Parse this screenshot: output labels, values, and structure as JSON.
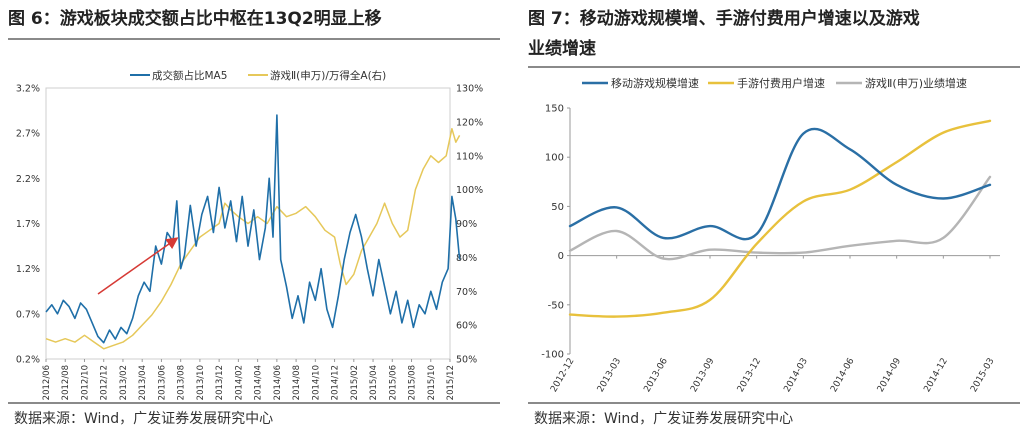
{
  "figure6": {
    "title": "图 6：游戏板块成交额占比中枢在13Q2明显上移",
    "source": "数据来源：Wind，广发证券发展研究中心",
    "chart_data": {
      "type": "line",
      "legend_position": "top",
      "x_ticks": [
        "2012/06",
        "2012/08",
        "2012/10",
        "2012/12",
        "2013/02",
        "2013/04",
        "2013/06",
        "2013/08",
        "2013/10",
        "2013/12",
        "2014/02",
        "2014/04",
        "2014/06",
        "2014/08",
        "2014/10",
        "2014/12",
        "2015/02",
        "2015/04",
        "2015/06",
        "2015/08",
        "2015/10",
        "2015/12"
      ],
      "y_left": {
        "ticks": [
          "0.2%",
          "0.7%",
          "1.2%",
          "1.7%",
          "2.2%",
          "2.7%",
          "3.2%"
        ],
        "min": 0.2,
        "max": 3.2
      },
      "y_right": {
        "ticks": [
          "50%",
          "60%",
          "70%",
          "80%",
          "90%",
          "100%",
          "110%",
          "120%",
          "130%"
        ],
        "min": 50,
        "max": 130
      },
      "series": [
        {
          "name": "成交额占比MA5",
          "axis": "left",
          "color": "#1f6fa8",
          "points": [
            [
              0,
              0.72
            ],
            [
              0.3,
              0.8
            ],
            [
              0.6,
              0.7
            ],
            [
              0.9,
              0.85
            ],
            [
              1.2,
              0.78
            ],
            [
              1.5,
              0.65
            ],
            [
              1.8,
              0.82
            ],
            [
              2.1,
              0.75
            ],
            [
              2.4,
              0.6
            ],
            [
              2.7,
              0.45
            ],
            [
              3.0,
              0.38
            ],
            [
              3.3,
              0.52
            ],
            [
              3.6,
              0.42
            ],
            [
              3.9,
              0.55
            ],
            [
              4.2,
              0.48
            ],
            [
              4.5,
              0.65
            ],
            [
              4.8,
              0.9
            ],
            [
              5.1,
              1.05
            ],
            [
              5.4,
              0.95
            ],
            [
              5.7,
              1.45
            ],
            [
              6.0,
              1.25
            ],
            [
              6.3,
              1.6
            ],
            [
              6.6,
              1.5
            ],
            [
              6.8,
              1.95
            ],
            [
              7.0,
              1.2
            ],
            [
              7.2,
              1.35
            ],
            [
              7.5,
              1.9
            ],
            [
              7.8,
              1.45
            ],
            [
              8.1,
              1.8
            ],
            [
              8.4,
              2.0
            ],
            [
              8.7,
              1.6
            ],
            [
              9.0,
              2.1
            ],
            [
              9.3,
              1.65
            ],
            [
              9.6,
              1.95
            ],
            [
              9.9,
              1.5
            ],
            [
              10.2,
              2.0
            ],
            [
              10.5,
              1.45
            ],
            [
              10.8,
              1.85
            ],
            [
              11.1,
              1.3
            ],
            [
              11.4,
              1.65
            ],
            [
              11.6,
              2.2
            ],
            [
              11.8,
              1.55
            ],
            [
              12.0,
              2.9
            ],
            [
              12.2,
              1.3
            ],
            [
              12.5,
              1.0
            ],
            [
              12.8,
              0.65
            ],
            [
              13.1,
              0.9
            ],
            [
              13.4,
              0.6
            ],
            [
              13.7,
              1.05
            ],
            [
              14.0,
              0.85
            ],
            [
              14.3,
              1.2
            ],
            [
              14.6,
              0.75
            ],
            [
              14.9,
              0.55
            ],
            [
              15.2,
              0.9
            ],
            [
              15.5,
              1.3
            ],
            [
              15.8,
              1.6
            ],
            [
              16.1,
              1.8
            ],
            [
              16.4,
              1.55
            ],
            [
              16.7,
              1.2
            ],
            [
              17.0,
              0.9
            ],
            [
              17.3,
              1.3
            ],
            [
              17.6,
              1.0
            ],
            [
              17.9,
              0.7
            ],
            [
              18.2,
              0.95
            ],
            [
              18.5,
              0.6
            ],
            [
              18.8,
              0.85
            ],
            [
              19.1,
              0.55
            ],
            [
              19.4,
              0.8
            ],
            [
              19.7,
              0.7
            ],
            [
              20.0,
              0.95
            ],
            [
              20.3,
              0.75
            ],
            [
              20.6,
              1.05
            ],
            [
              20.9,
              1.2
            ],
            [
              21.1,
              2.0
            ],
            [
              21.3,
              1.75
            ],
            [
              21.5,
              1.3
            ]
          ]
        },
        {
          "name": "游戏Ⅱ(申万)/万得全A(右)",
          "axis": "right",
          "color": "#e6c85a",
          "points": [
            [
              0,
              56
            ],
            [
              0.5,
              55
            ],
            [
              1.0,
              56
            ],
            [
              1.5,
              55
            ],
            [
              2.0,
              57
            ],
            [
              2.5,
              55
            ],
            [
              3.0,
              53
            ],
            [
              3.5,
              54
            ],
            [
              4.0,
              55
            ],
            [
              4.5,
              57
            ],
            [
              5.0,
              60
            ],
            [
              5.5,
              63
            ],
            [
              6.0,
              67
            ],
            [
              6.5,
              72
            ],
            [
              7.0,
              78
            ],
            [
              7.5,
              82
            ],
            [
              8.0,
              86
            ],
            [
              8.5,
              88
            ],
            [
              9.0,
              90
            ],
            [
              9.3,
              96
            ],
            [
              9.6,
              94
            ],
            [
              10.0,
              92
            ],
            [
              10.5,
              90
            ],
            [
              11.0,
              92
            ],
            [
              11.5,
              90
            ],
            [
              12.0,
              95
            ],
            [
              12.5,
              92
            ],
            [
              13.0,
              93
            ],
            [
              13.5,
              95
            ],
            [
              14.0,
              92
            ],
            [
              14.5,
              88
            ],
            [
              15.0,
              86
            ],
            [
              15.3,
              78
            ],
            [
              15.6,
              72
            ],
            [
              16.0,
              75
            ],
            [
              16.4,
              82
            ],
            [
              16.8,
              86
            ],
            [
              17.2,
              90
            ],
            [
              17.6,
              96
            ],
            [
              18.0,
              90
            ],
            [
              18.4,
              86
            ],
            [
              18.8,
              88
            ],
            [
              19.2,
              100
            ],
            [
              19.6,
              106
            ],
            [
              20.0,
              110
            ],
            [
              20.4,
              108
            ],
            [
              20.8,
              110
            ],
            [
              21.1,
              118
            ],
            [
              21.3,
              114
            ],
            [
              21.5,
              116
            ]
          ]
        }
      ]
    }
  },
  "figure7": {
    "title_line1": "图 7：移动游戏规模增、手游付费用户增速以及游戏",
    "title_line2": "业绩增速",
    "source": "数据来源：Wind，广发证券发展研究中心",
    "chart_data": {
      "type": "line",
      "legend_position": "top",
      "x_ticks": [
        "2012-12",
        "2013-03",
        "2013-06",
        "2013-09",
        "2013-12",
        "2014-03",
        "2014-06",
        "2014-09",
        "2014-12",
        "2015-03"
      ],
      "y": {
        "ticks": [
          -100,
          -50,
          0,
          50,
          100,
          150
        ],
        "min": -100,
        "max": 150
      },
      "series": [
        {
          "name": "移动游戏规模增速",
          "color": "#2a6fa5",
          "values": [
            30,
            49,
            18,
            30,
            22,
            124,
            108,
            72,
            58,
            72
          ]
        },
        {
          "name": "手游付费用户增速",
          "color": "#e8c13c",
          "values": [
            -60,
            -62,
            -58,
            -45,
            12,
            55,
            67,
            95,
            125,
            137
          ]
        },
        {
          "name": "游戏Ⅱ(申万)业绩增速",
          "color": "#b5b5b5",
          "values": [
            5,
            25,
            -3,
            6,
            3,
            3,
            10,
            15,
            18,
            80
          ]
        }
      ]
    }
  }
}
